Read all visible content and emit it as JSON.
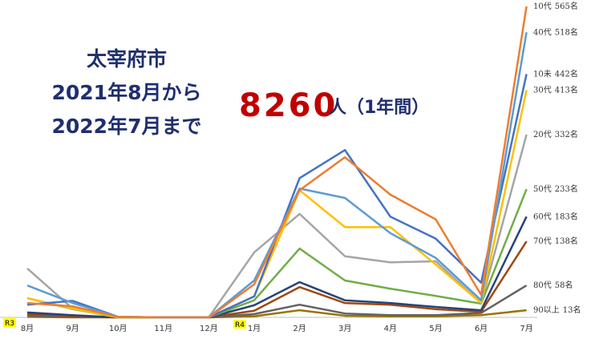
{
  "title_lines": [
    "太宰府市",
    "2021年8月から",
    "2022年7月まで"
  ],
  "total": "8260",
  "total_unit": "人（1年間）",
  "era_marks": [
    "R3",
    "R4"
  ],
  "chart_data": {
    "type": "line",
    "categories": [
      "8月",
      "9月",
      "10月",
      "11月",
      "12月",
      "1月",
      "2月",
      "3月",
      "4月",
      "5月",
      "6月",
      "7月"
    ],
    "ylim": [
      0,
      565
    ],
    "series": [
      {
        "name": "10代",
        "color": "#ED7D31",
        "values": [
          26,
          20,
          1,
          0,
          0,
          60,
          231,
          291,
          223,
          178,
          41,
          565
        ],
        "value_labels": [
          null,
          null,
          null,
          null,
          null,
          null,
          null,
          null,
          null,
          null,
          null,
          "565名"
        ]
      },
      {
        "name": "40代",
        "color": "#5B9BD5",
        "values": [
          58,
          26,
          1,
          0,
          0,
          67,
          234,
          217,
          153,
          108,
          31,
          518
        ],
        "value_labels": [
          null,
          null,
          null,
          null,
          null,
          null,
          null,
          null,
          null,
          null,
          null,
          "518名"
        ]
      },
      {
        "name": "10未",
        "color": "#4472C4",
        "values": [
          23,
          30,
          1,
          0,
          0,
          38,
          253,
          304,
          183,
          143,
          63,
          442
        ],
        "value_labels": [
          null,
          null,
          null,
          null,
          null,
          null,
          null,
          null,
          null,
          null,
          null,
          "442名"
        ]
      },
      {
        "name": "30代",
        "color": "#FFC000",
        "values": [
          35,
          16,
          0,
          0,
          0,
          38,
          231,
          164,
          164,
          96,
          26,
          413
        ],
        "value_labels": [
          null,
          null,
          null,
          null,
          null,
          null,
          null,
          null,
          null,
          null,
          null,
          "413名"
        ]
      },
      {
        "name": "20代",
        "color": "#A5A5A5",
        "values": [
          89,
          16,
          1,
          0,
          0,
          118,
          188,
          111,
          100,
          102,
          26,
          332
        ],
        "value_labels": [
          null,
          null,
          null,
          null,
          null,
          null,
          null,
          null,
          null,
          null,
          null,
          "332名"
        ]
      },
      {
        "name": "50代",
        "color": "#70AD47",
        "values": [
          35,
          15,
          0,
          0,
          0,
          31,
          125,
          67,
          52,
          39,
          25,
          233
        ],
        "value_labels": [
          null,
          null,
          null,
          null,
          null,
          null,
          null,
          null,
          null,
          null,
          null,
          "233名"
        ]
      },
      {
        "name": "60代",
        "color": "#264478",
        "values": [
          9,
          4,
          0,
          0,
          0,
          22,
          64,
          31,
          26,
          19,
          13,
          183
        ],
        "value_labels": [
          null,
          null,
          null,
          null,
          null,
          null,
          null,
          null,
          null,
          null,
          null,
          "183名"
        ]
      },
      {
        "name": "70代",
        "color": "#9E480E",
        "values": [
          6,
          2,
          0,
          0,
          0,
          12,
          55,
          26,
          23,
          15,
          10,
          138
        ],
        "value_labels": [
          null,
          null,
          null,
          null,
          null,
          null,
          null,
          null,
          null,
          null,
          null,
          "138名"
        ]
      },
      {
        "name": "80代",
        "color": "#636363",
        "values": [
          3,
          1,
          0,
          0,
          0,
          6,
          23,
          7,
          4,
          4,
          8,
          58
        ],
        "value_labels": [
          null,
          null,
          null,
          null,
          null,
          null,
          null,
          null,
          null,
          null,
          null,
          "58名"
        ]
      },
      {
        "name": "90以上",
        "color": "#997300",
        "values": [
          1,
          0,
          0,
          0,
          0,
          2,
          13,
          3,
          2,
          2,
          4,
          13
        ],
        "value_labels": [
          null,
          null,
          null,
          null,
          null,
          null,
          null,
          null,
          null,
          null,
          null,
          "13名"
        ]
      }
    ]
  }
}
